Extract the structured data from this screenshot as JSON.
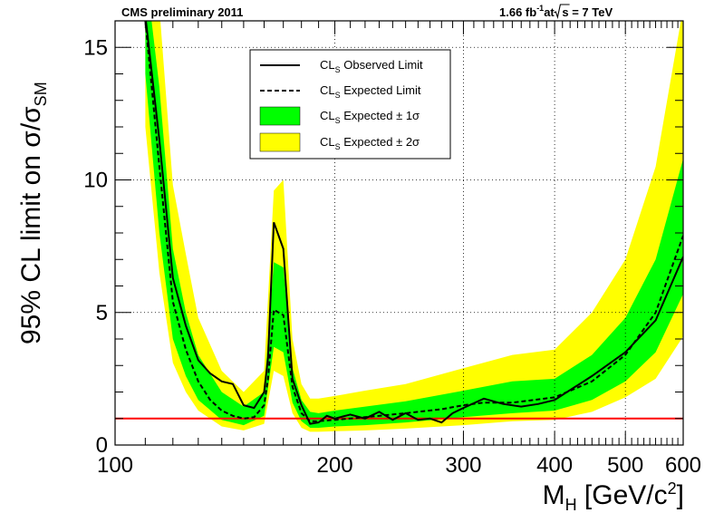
{
  "header": {
    "left": "CMS preliminary 2011",
    "lumi": "1.66 fb",
    "lumi_exp": "-1",
    "energy_prefix": "at ",
    "energy_root": "s",
    "energy_suffix": " = 7 TeV"
  },
  "axes": {
    "y_main": "95% CL limit on σ/σ",
    "y_sub": "SM",
    "x_main": "M",
    "x_sub": "H",
    "x_unit": " [GeV/c",
    "x_unit_exp": "2",
    "x_unit_end": "]"
  },
  "legend": {
    "cls": "CL",
    "sub": "S",
    "observed": " Observed Limit",
    "expected": " Expected Limit",
    "one_sigma": " Expected ± 1σ",
    "two_sigma": " Expected ± 2σ"
  },
  "colors": {
    "one_sigma": "#00ff00",
    "two_sigma": "#ffff00",
    "sm_line": "#ff0000",
    "observed": "#000000",
    "expected": "#000000"
  },
  "chart_data": {
    "type": "line",
    "title": "CMS preliminary 2011",
    "xlabel": "M_H [GeV/c^2]",
    "ylabel": "95% CL limit on σ/σ_SM",
    "xscale": "log",
    "xlim": [
      100,
      600
    ],
    "ylim": [
      0,
      16
    ],
    "grid": true,
    "legend_position": "top-center",
    "x_ticks": [
      100,
      200,
      300,
      400,
      500,
      600
    ],
    "x_tick_labels": [
      "100",
      "200",
      "300",
      "400",
      "500",
      "600"
    ],
    "y_ticks": [
      0,
      5,
      10,
      15
    ],
    "y_tick_labels": [
      "0",
      "5",
      "10",
      "15"
    ],
    "sm_reference": 1,
    "series": [
      {
        "name": "CL_S Observed Limit",
        "style": "solid",
        "x": [
          110,
          115,
          120,
          125,
          130,
          135,
          140,
          145,
          150,
          155,
          160,
          162,
          165,
          170,
          175,
          180,
          185,
          190,
          195,
          200,
          210,
          220,
          230,
          240,
          250,
          260,
          270,
          280,
          290,
          300,
          320,
          340,
          360,
          380,
          400,
          450,
          500,
          550,
          600
        ],
        "y": [
          16.2,
          11.5,
          6.3,
          4.5,
          3.2,
          2.7,
          2.4,
          2.3,
          1.5,
          1.4,
          2.0,
          3.3,
          8.4,
          7.4,
          2.5,
          1.5,
          0.8,
          0.85,
          1.1,
          1.0,
          1.15,
          1.0,
          1.25,
          0.95,
          1.2,
          0.95,
          1.0,
          0.85,
          1.2,
          1.4,
          1.75,
          1.55,
          1.45,
          1.55,
          1.7,
          2.6,
          3.5,
          4.7,
          7.1
        ]
      },
      {
        "name": "CL_S Expected Limit",
        "style": "dashed",
        "x": [
          110,
          115,
          120,
          125,
          130,
          135,
          140,
          145,
          150,
          155,
          160,
          162,
          165,
          170,
          175,
          180,
          185,
          190,
          200,
          220,
          250,
          280,
          300,
          320,
          350,
          400,
          450,
          500,
          550,
          600
        ],
        "y": [
          16.0,
          10.5,
          5.4,
          3.6,
          2.4,
          1.7,
          1.3,
          1.1,
          1.0,
          1.05,
          1.5,
          2.5,
          5.1,
          4.9,
          2.2,
          1.2,
          0.9,
          0.9,
          0.95,
          1.05,
          1.2,
          1.35,
          1.5,
          1.6,
          1.6,
          1.8,
          2.4,
          3.4,
          5.0,
          7.9
        ]
      },
      {
        "name": "CL_S Expected ± 1σ",
        "style": "band",
        "x": [
          110,
          115,
          120,
          125,
          130,
          140,
          150,
          160,
          165,
          170,
          175,
          180,
          185,
          190,
          200,
          220,
          250,
          300,
          350,
          400,
          450,
          500,
          550,
          600
        ],
        "lower": [
          14.0,
          8.0,
          4.0,
          2.6,
          1.7,
          0.95,
          0.75,
          1.1,
          3.7,
          3.5,
          1.6,
          0.9,
          0.65,
          0.65,
          0.7,
          0.75,
          0.85,
          1.05,
          1.2,
          1.3,
          1.7,
          2.4,
          3.5,
          5.7
        ],
        "upper": [
          18.0,
          13.5,
          7.4,
          5.0,
          3.4,
          2.0,
          1.45,
          2.0,
          6.9,
          6.7,
          2.9,
          1.7,
          1.25,
          1.2,
          1.3,
          1.45,
          1.65,
          2.05,
          2.4,
          2.5,
          3.4,
          4.8,
          7.0,
          10.8
        ]
      },
      {
        "name": "CL_S Expected ± 2σ",
        "style": "band",
        "x": [
          110,
          115,
          120,
          125,
          130,
          140,
          150,
          160,
          165,
          170,
          175,
          180,
          185,
          190,
          200,
          220,
          250,
          300,
          350,
          400,
          450,
          500,
          550,
          600
        ],
        "lower": [
          12.0,
          6.5,
          3.1,
          2.0,
          1.3,
          0.7,
          0.55,
          0.8,
          2.8,
          2.6,
          1.2,
          0.65,
          0.5,
          0.5,
          0.52,
          0.55,
          0.62,
          0.75,
          0.9,
          0.95,
          1.25,
          1.8,
          2.5,
          4.1
        ],
        "upper": [
          19.0,
          16.5,
          9.8,
          7.2,
          4.8,
          2.8,
          2.0,
          2.8,
          9.6,
          10.0,
          4.0,
          2.3,
          1.75,
          1.75,
          1.85,
          2.05,
          2.3,
          2.9,
          3.4,
          3.6,
          5.0,
          7.0,
          10.5,
          16.5
        ]
      }
    ]
  }
}
